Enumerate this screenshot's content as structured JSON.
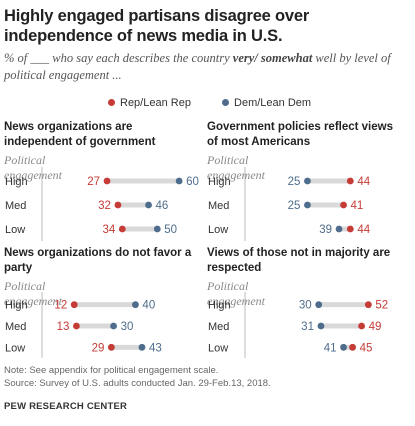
{
  "title": "Highly engaged partisans disagree over independence of news media in U.S.",
  "subtitle_parts": {
    "prefix": "% of ___ who say each describes the country ",
    "emph": "very/ somewhat",
    "suffix": " well by level of political engagement ..."
  },
  "legend": [
    {
      "label": "Rep/Lean Rep",
      "color": "#c53b35"
    },
    {
      "label": "Dem/Lean Dem",
      "color": "#4e6d8c"
    }
  ],
  "colors": {
    "rep": "#c53b35",
    "dem": "#4e6d8c",
    "bar": "#d9d9d9"
  },
  "chart_data": [
    {
      "type": "dot",
      "title": "News organizations are independent of government",
      "subtitle": "Political engagement",
      "categories": [
        "High",
        "Med",
        "Low"
      ],
      "series": [
        {
          "name": "Rep/Lean Rep",
          "values": [
            27,
            32,
            34
          ]
        },
        {
          "name": "Dem/Lean Dem",
          "values": [
            60,
            46,
            50
          ]
        }
      ]
    },
    {
      "type": "dot",
      "title": "Government policies reflect views of most Americans",
      "subtitle": "Political engagement",
      "categories": [
        "High",
        "Med",
        "Low"
      ],
      "series": [
        {
          "name": "Rep/Lean Rep",
          "values": [
            44,
            41,
            44
          ]
        },
        {
          "name": "Dem/Lean Dem",
          "values": [
            25,
            25,
            39
          ]
        }
      ]
    },
    {
      "type": "dot",
      "title": "News organizations do not favor a party",
      "subtitle": "Political engagement",
      "categories": [
        "High",
        "Med",
        "Low"
      ],
      "series": [
        {
          "name": "Rep/Lean Rep",
          "values": [
            12,
            13,
            29
          ]
        },
        {
          "name": "Dem/Lean Dem",
          "values": [
            40,
            30,
            43
          ]
        }
      ]
    },
    {
      "type": "dot",
      "title": "Views of those not in majority are respected",
      "subtitle": "Political engagement",
      "categories": [
        "High",
        "Med",
        "Low"
      ],
      "series": [
        {
          "name": "Rep/Lean Rep",
          "values": [
            52,
            49,
            45
          ]
        },
        {
          "name": "Dem/Lean Dem",
          "values": [
            30,
            31,
            41
          ]
        }
      ]
    }
  ],
  "footer": {
    "note": "Note: See appendix for political engagement scale.",
    "source": "Source: Survey of U.S. adults conducted Jan. 29-Feb.13, 2018.",
    "brand": "PEW RESEARCH CENTER"
  }
}
